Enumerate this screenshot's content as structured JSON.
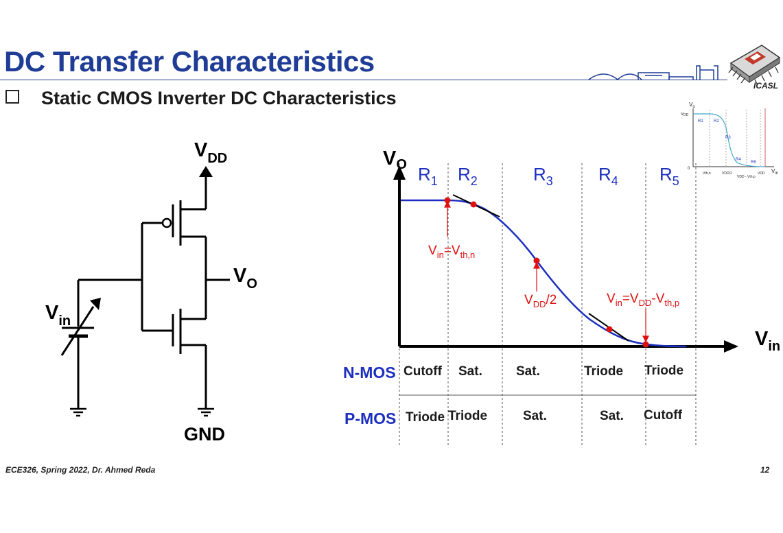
{
  "slide": {
    "title": "DC Transfer Characteristics",
    "subtitle": "Static CMOS Inverter DC Characteristics",
    "footer_left": "ECE326, Spring 2022, Dr. Ahmed Reda",
    "page_number": "12",
    "logo_text": "ICASL"
  },
  "circuit": {
    "vdd": "V",
    "vdd_sub": "DD",
    "vo": "V",
    "vo_sub": "O",
    "vin": "V",
    "vin_sub": "in",
    "gnd": "GND"
  },
  "vtc": {
    "y_axis": "V",
    "y_sub": "O",
    "x_axis": "V",
    "x_sub": "in",
    "regions": [
      {
        "label": "R",
        "sub": "1"
      },
      {
        "label": "R",
        "sub": "2"
      },
      {
        "label": "R",
        "sub": "3"
      },
      {
        "label": "R",
        "sub": "4"
      },
      {
        "label": "R",
        "sub": "5"
      }
    ],
    "annotations": {
      "vth_n": {
        "v1": "V",
        "s1": "in",
        "eq": "=V",
        "s2": "th,n"
      },
      "vdd_half": {
        "v1": "V",
        "s1": "DD",
        "rest": "/2"
      },
      "vth_p": {
        "v1": "V",
        "s1": "in",
        "eq": "=V",
        "s2": "DD",
        "dash": "-V",
        "s3": "th,p"
      }
    },
    "nmos_label": "N-MOS",
    "pmos_label": "P-MOS",
    "nmos_states": [
      "Cutoff",
      "Sat.",
      "Sat.",
      "Triode",
      "Triode"
    ],
    "pmos_states": [
      "Triode",
      "Triode",
      "Sat.",
      "Sat.",
      "Cutoff"
    ]
  },
  "thumbnail": {
    "y_axis": "V",
    "y_sub": "o",
    "vdd": "V",
    "vdd_sub": "DD",
    "x_axis": "V",
    "x_sub": "in",
    "origin": "0",
    "regions": [
      "R1",
      "R2",
      "R3",
      "R4",
      "R5"
    ],
    "ticks": [
      "Vth,n",
      "VDD/2",
      "VDD - Vth,p",
      "VDD"
    ]
  },
  "colors": {
    "title": "#1f3c96",
    "curve": "#1c2fbf",
    "region_label": "#1c2fbf",
    "annotation": "#e01010",
    "thumb_curve": "#3fa7c9"
  }
}
